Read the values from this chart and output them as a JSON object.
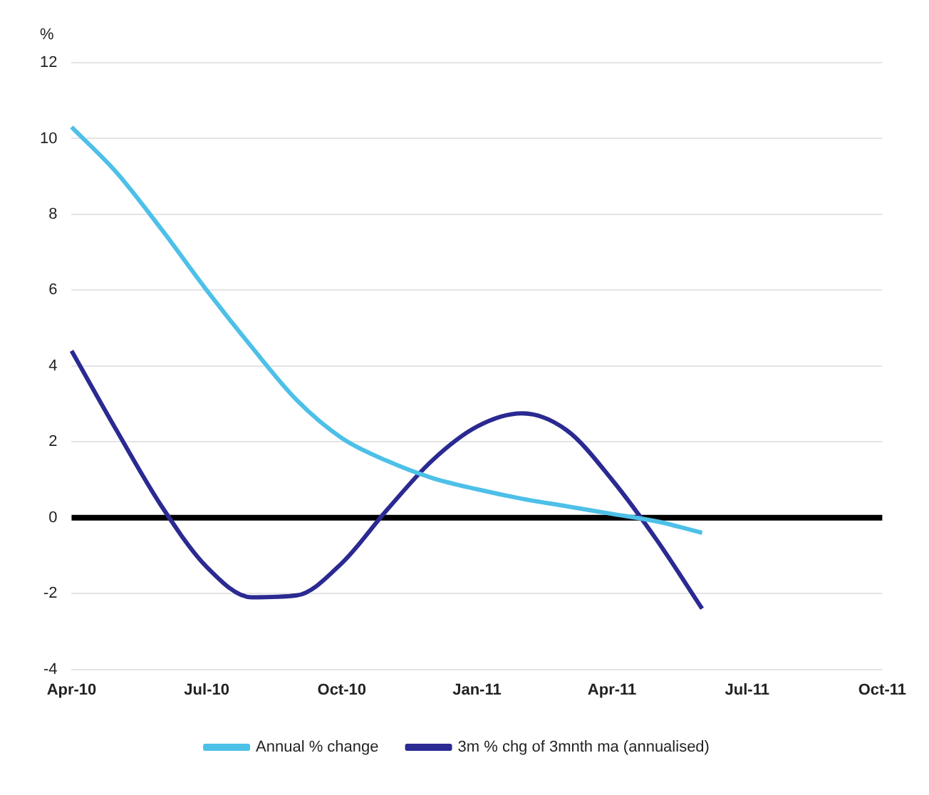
{
  "chart_data": {
    "type": "line",
    "ylabel": "%",
    "categories": [
      "Apr-10",
      null,
      null,
      "Jul-10",
      null,
      null,
      "Oct-10",
      null,
      null,
      "Jan-11",
      null,
      null,
      "Apr-11",
      null,
      null,
      "Jul-11",
      null,
      null,
      "Oct-11"
    ],
    "series": [
      {
        "name": "Annual % change",
        "color": "#4dc0e8",
        "values": [
          10.3,
          9.1,
          7.6,
          6.0,
          4.5,
          3.1,
          2.1,
          1.5,
          1.05,
          0.75,
          0.5,
          0.3,
          0.1,
          -0.1,
          -0.4,
          null,
          null,
          null,
          null
        ]
      },
      {
        "name": "3m % chg of 3mnth ma (annualised)",
        "color": "#2b2a92",
        "values": [
          4.4,
          2.3,
          0.3,
          -1.3,
          -2.1,
          -2.05,
          -1.2,
          0.2,
          1.5,
          2.4,
          2.75,
          2.3,
          1.0,
          -0.6,
          -2.4,
          null,
          null,
          null,
          null
        ]
      }
    ],
    "ylim": [
      -4,
      12
    ],
    "yticks": [
      -4,
      -2,
      0,
      2,
      4,
      6,
      8,
      10,
      12
    ],
    "grid": "y",
    "legend": "bottom",
    "marker": "none",
    "line_style": "solid",
    "ref_lines": [
      {
        "axis": "y",
        "value": 0,
        "color": "#000000"
      }
    ]
  }
}
